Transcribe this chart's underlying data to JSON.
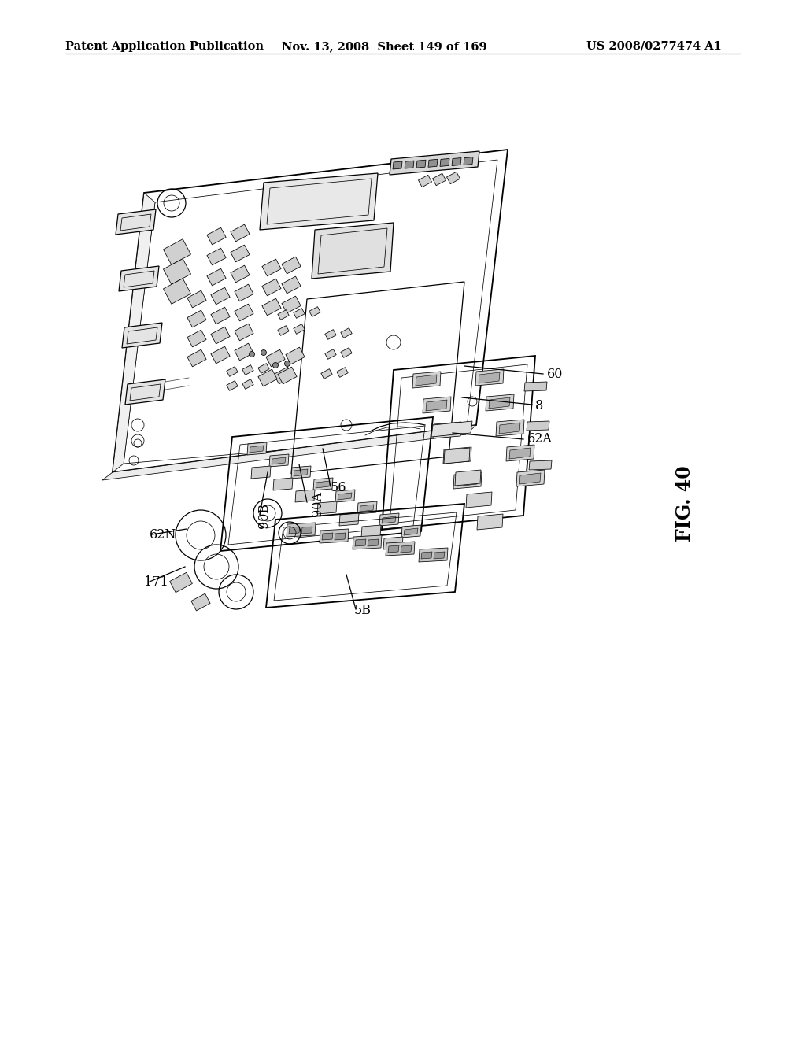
{
  "header_left": "Patent Application Publication",
  "header_mid": "Nov. 13, 2008  Sheet 149 of 169",
  "header_right": "US 2008/0277474 A1",
  "fig_label": "FIG. 40",
  "background_color": "#ffffff",
  "header_font_size": 10.5,
  "label_font_size": 11.5,
  "fig_label_font_size": 17,
  "line_color": "#000000",
  "lw_main": 1.3,
  "lw_med": 0.9,
  "lw_thin": 0.55
}
